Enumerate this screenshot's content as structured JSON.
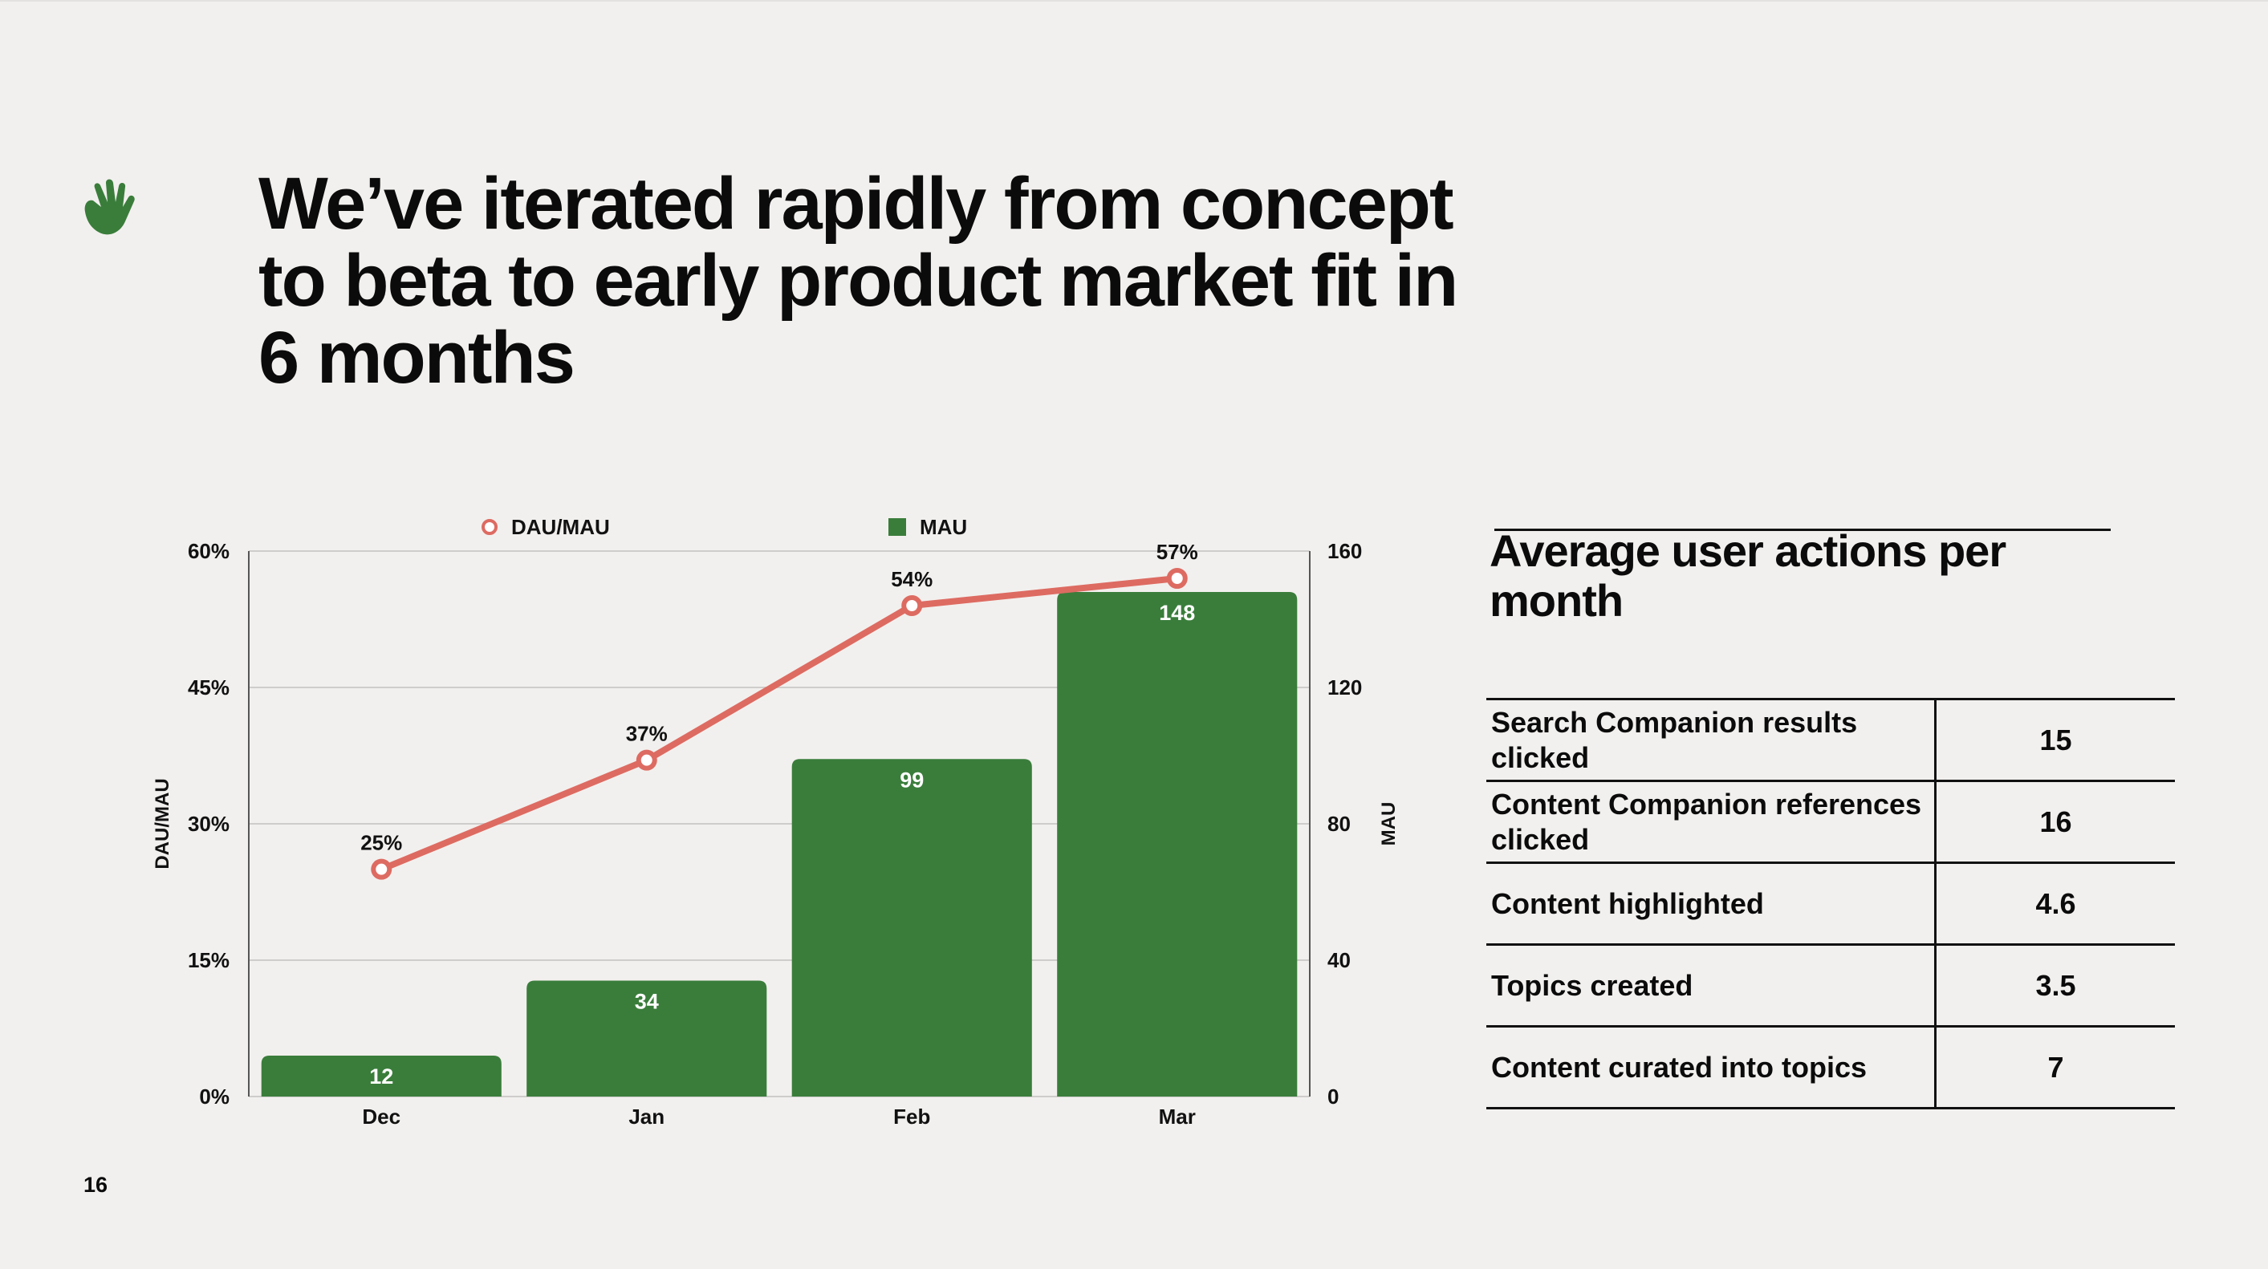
{
  "slide": {
    "title": "We’ve iterated rapidly from concept to beta to early product market fit in 6 months",
    "page_number": "16",
    "accent": "#3a7d3b",
    "icon": "waving-hand-icon"
  },
  "chart_data": {
    "type": "bar",
    "categories": [
      "Dec",
      "Jan",
      "Feb",
      "Mar"
    ],
    "series": [
      {
        "name": "MAU",
        "type": "bar",
        "axis": "right",
        "values": [
          12,
          34,
          99,
          148
        ],
        "labels": [
          "12",
          "34",
          "99",
          "148"
        ],
        "color": "#3a7d3b"
      },
      {
        "name": "DAU/MAU",
        "type": "line",
        "axis": "left",
        "values": [
          25,
          37,
          54,
          57
        ],
        "labels": [
          "25%",
          "37%",
          "54%",
          "57%"
        ],
        "color": "#dd6b62"
      }
    ],
    "ylabel": "DAU/MAU",
    "y2label": "MAU",
    "ylim": [
      0,
      60
    ],
    "y2lim": [
      0,
      160
    ],
    "yticks": [
      "0%",
      "15%",
      "30%",
      "45%",
      "60%"
    ],
    "y2ticks": [
      "0",
      "40",
      "80",
      "120",
      "160"
    ],
    "grid": true,
    "legend": "top"
  },
  "actions": {
    "title": "Average user actions per month",
    "rows": [
      {
        "label": "Search Companion results clicked",
        "value": "15"
      },
      {
        "label": "Content Companion references clicked",
        "value": "16"
      },
      {
        "label": "Content highlighted",
        "value": "4.6"
      },
      {
        "label": "Topics created",
        "value": "3.5"
      },
      {
        "label": "Content curated into topics",
        "value": "7"
      }
    ]
  }
}
